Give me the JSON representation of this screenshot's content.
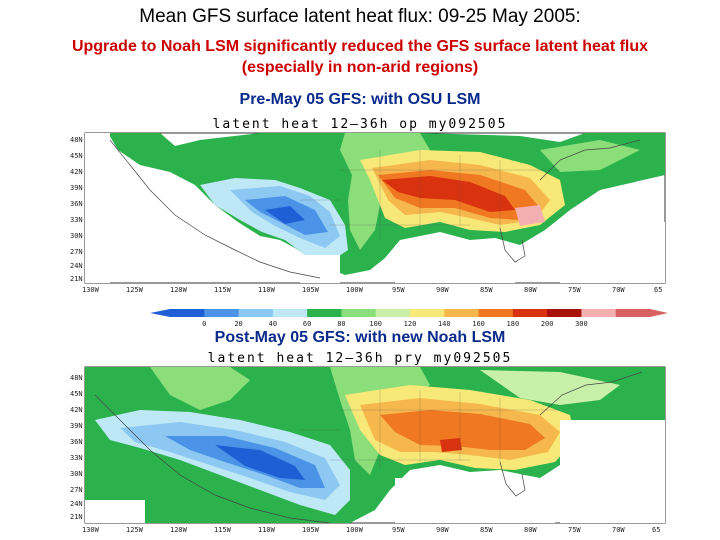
{
  "title": "Mean GFS surface latent heat flux: 09-25 May 2005:",
  "subtitle_line1": "Upgrade to Noah LSM significantly reduced the GFS surface latent heat flux",
  "subtitle_line2": "(especially in non-arid regions)",
  "panel1": {
    "label": "Pre-May 05 GFS: with OSU LSM",
    "map_title": "latent heat 12–36h op my092505"
  },
  "panel2": {
    "label": "Post-May 05 GFS: with new Noah LSM",
    "map_title": "latent heat 12–36h pry my092505"
  },
  "lon_ticks": [
    "130W",
    "125W",
    "120W",
    "115W",
    "110W",
    "105W",
    "100W",
    "95W",
    "90W",
    "85W",
    "80W",
    "75W",
    "70W",
    "65"
  ],
  "lat_ticks": [
    "48N",
    "45N",
    "42N",
    "39N",
    "36N",
    "33N",
    "30N",
    "27N",
    "24N",
    "21N"
  ],
  "colorbar": {
    "values": [
      "0",
      "20",
      "40",
      "60",
      "80",
      "100",
      "120",
      "140",
      "160",
      "180",
      "200",
      "300"
    ],
    "colors": [
      "#1f5fd6",
      "#4b93e6",
      "#8cc8f2",
      "#bfe8f6",
      "#2bb24c",
      "#8cde7a",
      "#c8f0a8",
      "#f8e878",
      "#f6b84c",
      "#f07820",
      "#d8320e",
      "#a81008",
      "#f4b0b0",
      "#d86060"
    ]
  }
}
